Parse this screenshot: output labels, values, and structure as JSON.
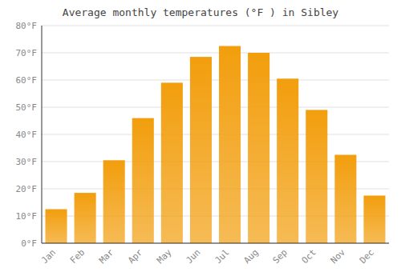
{
  "chart_data": {
    "type": "bar",
    "title": "Average monthly temperatures (°F ) in Sibley",
    "categories": [
      "Jan",
      "Feb",
      "Mar",
      "Apr",
      "May",
      "Jun",
      "Jul",
      "Aug",
      "Sep",
      "Oct",
      "Nov",
      "Dec"
    ],
    "values": [
      12.5,
      18.5,
      30.5,
      46,
      59,
      68.5,
      72.5,
      70,
      60.5,
      49,
      32.5,
      17.5
    ],
    "color": "#f29e0d",
    "ylim": [
      0,
      80
    ],
    "yticks": [
      {
        "value": 0,
        "label": "0°F"
      },
      {
        "value": 10,
        "label": "10°F"
      },
      {
        "value": 20,
        "label": "20°F"
      },
      {
        "value": 30,
        "label": "30°F"
      },
      {
        "value": 40,
        "label": "40°F"
      },
      {
        "value": 50,
        "label": "50°F"
      },
      {
        "value": 60,
        "label": "60°F"
      },
      {
        "value": 70,
        "label": "70°F"
      },
      {
        "value": 80,
        "label": "80°F"
      }
    ],
    "grid": true
  }
}
